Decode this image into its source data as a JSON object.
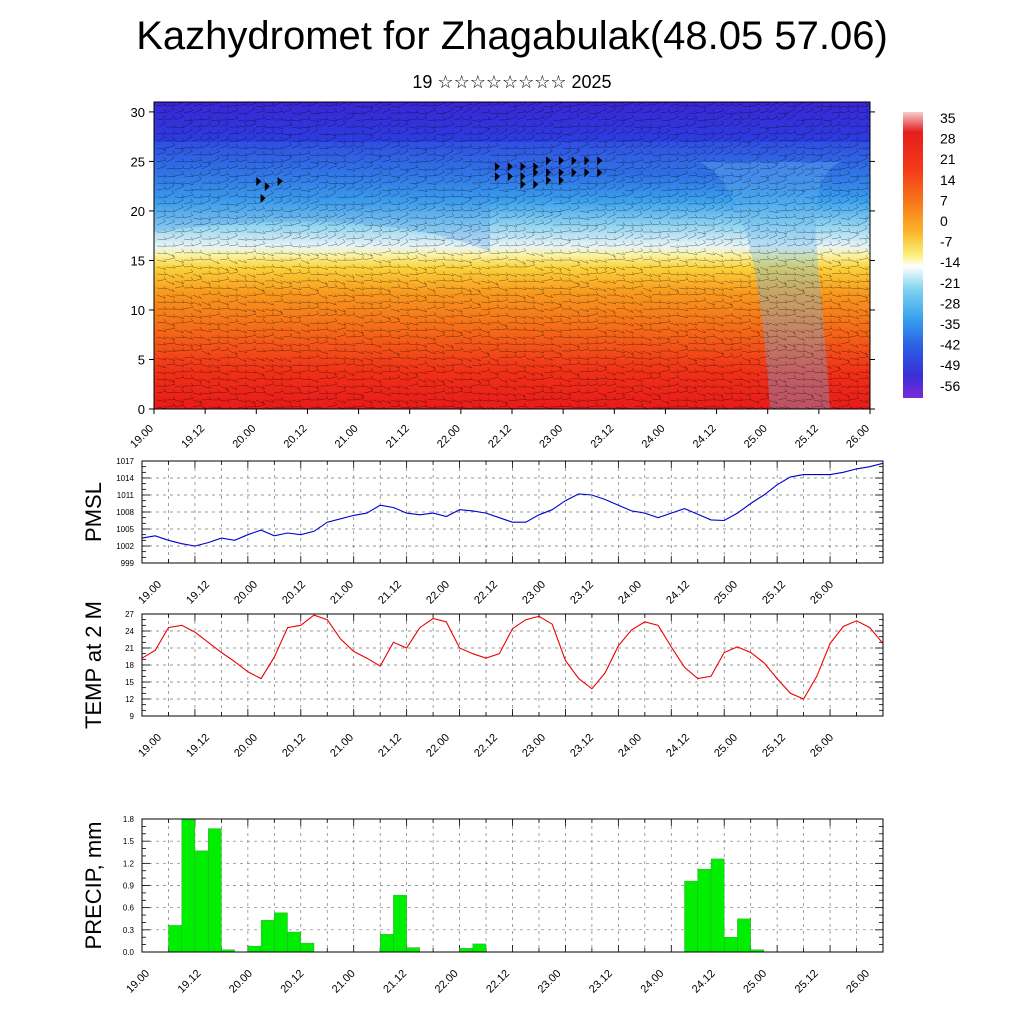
{
  "header": {
    "title": "Kazhydromet for Zhagabulak(48.05 57.06)",
    "subtitle": "19 ☆☆☆☆☆☆☆☆ 2025"
  },
  "time_labels": [
    "19.00",
    "19.12",
    "20.00",
    "20.12",
    "21.00",
    "21.12",
    "22.00",
    "22.12",
    "23.00",
    "23.12",
    "24.00",
    "24.12",
    "25.00",
    "25.12",
    "26.00"
  ],
  "chart_data": [
    {
      "type": "heatmap",
      "name": "cross-section",
      "x_range": [
        0,
        168
      ],
      "y_ticks": [
        0,
        5,
        10,
        15,
        20,
        25,
        30
      ],
      "ylim": [
        0,
        31
      ],
      "colorbar": {
        "labels": [
          "35",
          "28",
          "21",
          "14",
          "7",
          "0",
          "-7",
          "-14",
          "-21",
          "-28",
          "-35",
          "-42",
          "-49",
          "-56"
        ],
        "colors": [
          "#f6c9c9",
          "#e01f1f",
          "#f23a1a",
          "#f5701a",
          "#f79a1f",
          "#fbc832",
          "#fbf07a",
          "#ffffff",
          "#7fd3ef",
          "#3ba6ee",
          "#2e7fe6",
          "#2a4fe0",
          "#3a2fd6",
          "#6a2ad6"
        ]
      },
      "gust_markers": [
        {
          "x": 24,
          "y": 22.5
        },
        {
          "x": 26,
          "y": 22
        },
        {
          "x": 29,
          "y": 22.5
        },
        {
          "x": 25,
          "y": 20.8
        },
        {
          "x": 80,
          "y": 24
        },
        {
          "x": 83,
          "y": 24
        },
        {
          "x": 86,
          "y": 24
        },
        {
          "x": 89,
          "y": 24
        },
        {
          "x": 92,
          "y": 24.6
        },
        {
          "x": 95,
          "y": 24.6
        },
        {
          "x": 98,
          "y": 24.6
        },
        {
          "x": 101,
          "y": 24.6
        },
        {
          "x": 104,
          "y": 24.6
        },
        {
          "x": 80,
          "y": 23
        },
        {
          "x": 83,
          "y": 23
        },
        {
          "x": 86,
          "y": 23
        },
        {
          "x": 89,
          "y": 23.4
        },
        {
          "x": 92,
          "y": 23.4
        },
        {
          "x": 95,
          "y": 23.4
        },
        {
          "x": 98,
          "y": 23.4
        },
        {
          "x": 101,
          "y": 23.4
        },
        {
          "x": 104,
          "y": 23.4
        },
        {
          "x": 86,
          "y": 22.2
        },
        {
          "x": 89,
          "y": 22.2
        },
        {
          "x": 92,
          "y": 22.6
        },
        {
          "x": 95,
          "y": 22.6
        }
      ]
    },
    {
      "type": "line",
      "name": "PMSL",
      "ylabel": "PMSL",
      "y_ticks": [
        999,
        1002,
        1005,
        1008,
        1011,
        1014,
        1017
      ],
      "ylim": [
        999,
        1017
      ],
      "color": "#0000cc",
      "x": [
        0,
        3,
        6,
        9,
        12,
        15,
        18,
        21,
        24,
        27,
        30,
        33,
        36,
        39,
        42,
        45,
        48,
        51,
        54,
        57,
        60,
        63,
        66,
        69,
        72,
        75,
        78,
        81,
        84,
        87,
        90,
        93,
        96,
        99,
        102,
        105,
        108,
        111,
        114,
        117,
        120,
        123,
        126,
        129,
        132,
        135,
        138,
        141,
        144,
        147,
        150,
        153,
        156,
        159,
        162,
        165,
        168
      ],
      "values": [
        1003.4,
        1003.8,
        1003.0,
        1002.4,
        1002.0,
        1002.6,
        1003.4,
        1003.0,
        1004.0,
        1004.8,
        1003.8,
        1004.3,
        1004.0,
        1004.6,
        1006.2,
        1006.8,
        1007.4,
        1007.8,
        1009.2,
        1008.8,
        1007.8,
        1007.5,
        1007.8,
        1007.2,
        1008.4,
        1008.2,
        1007.8,
        1007.0,
        1006.2,
        1006.2,
        1007.5,
        1008.4,
        1010.0,
        1011.2,
        1011.0,
        1010.2,
        1009.2,
        1008.2,
        1007.8,
        1007.0,
        1007.8,
        1008.6,
        1007.6,
        1006.6,
        1006.5,
        1007.8,
        1009.5,
        1011.0,
        1012.8,
        1014.2,
        1014.6,
        1014.6,
        1014.6,
        1015.0,
        1015.6,
        1016.0,
        1016.6
      ]
    },
    {
      "type": "line",
      "name": "TEMP at 2 M",
      "ylabel": "TEMP at 2 M",
      "y_ticks": [
        9,
        12,
        15,
        18,
        21,
        24,
        27
      ],
      "ylim": [
        9,
        27
      ],
      "color": "#ee0000",
      "x": [
        0,
        3,
        6,
        9,
        12,
        15,
        18,
        21,
        24,
        27,
        30,
        33,
        36,
        39,
        42,
        45,
        48,
        51,
        54,
        57,
        60,
        63,
        66,
        69,
        72,
        75,
        78,
        81,
        84,
        87,
        90,
        93,
        96,
        99,
        102,
        105,
        108,
        111,
        114,
        117,
        120,
        123,
        126,
        129,
        132,
        135,
        138,
        141,
        144,
        147,
        150,
        153,
        156,
        159,
        162,
        165,
        168
      ],
      "values": [
        19.2,
        20.6,
        24.6,
        25.0,
        23.8,
        22.0,
        20.2,
        18.6,
        16.8,
        15.6,
        19.4,
        24.6,
        25.0,
        26.8,
        26.0,
        22.6,
        20.4,
        19.2,
        17.8,
        22.0,
        21.0,
        24.6,
        26.2,
        25.6,
        21.0,
        20.0,
        19.2,
        20.0,
        24.4,
        26.0,
        26.6,
        25.2,
        18.8,
        15.6,
        13.8,
        16.6,
        21.4,
        24.2,
        25.6,
        25.0,
        21.2,
        17.6,
        15.6,
        16.0,
        20.2,
        21.2,
        20.2,
        18.4,
        15.6,
        13.0,
        12.0,
        16.0,
        21.8,
        24.8,
        25.8,
        24.6,
        21.8
      ]
    },
    {
      "type": "bar",
      "name": "PRECIP, mm",
      "ylabel": "PRECIP, mm",
      "y_ticks": [
        "0.0",
        "0.3",
        "0.6",
        "0.9",
        "1.2",
        "1.5",
        "1.8"
      ],
      "ylim": [
        0,
        1.8
      ],
      "color": "#00ee00",
      "bars": [
        {
          "x": 6,
          "value": 0.36
        },
        {
          "x": 9,
          "value": 1.8
        },
        {
          "x": 12,
          "value": 1.37
        },
        {
          "x": 15,
          "value": 1.67
        },
        {
          "x": 18,
          "value": 0.03
        },
        {
          "x": 24,
          "value": 0.08
        },
        {
          "x": 27,
          "value": 0.43
        },
        {
          "x": 30,
          "value": 0.53
        },
        {
          "x": 33,
          "value": 0.27
        },
        {
          "x": 36,
          "value": 0.12
        },
        {
          "x": 54,
          "value": 0.24
        },
        {
          "x": 57,
          "value": 0.77
        },
        {
          "x": 60,
          "value": 0.06
        },
        {
          "x": 72,
          "value": 0.05
        },
        {
          "x": 75,
          "value": 0.11
        },
        {
          "x": 123,
          "value": 0.96
        },
        {
          "x": 126,
          "value": 1.12
        },
        {
          "x": 129,
          "value": 1.26
        },
        {
          "x": 132,
          "value": 0.2
        },
        {
          "x": 135,
          "value": 0.45
        },
        {
          "x": 138,
          "value": 0.03
        }
      ]
    }
  ]
}
